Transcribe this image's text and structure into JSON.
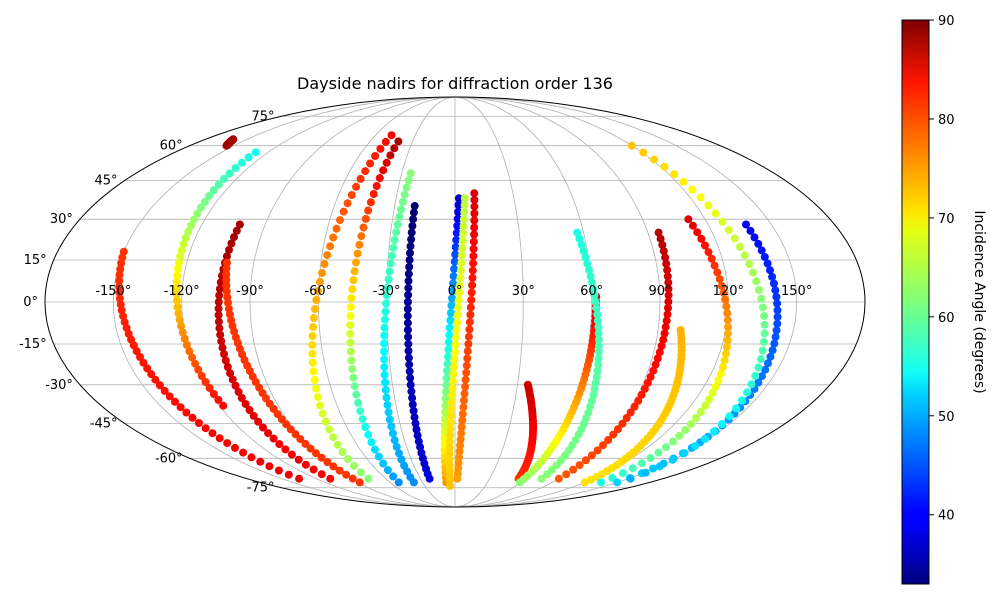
{
  "chart_data": {
    "type": "scatter",
    "projection": "mollweide",
    "title": "Dayside nadirs for diffraction order 136",
    "lon_ticks": [
      "-150°",
      "-120°",
      "-90°",
      "-60°",
      "-30°",
      "0°",
      "30°",
      "60°",
      "90°",
      "120°",
      "150°"
    ],
    "lat_ticks": [
      "75°",
      "60°",
      "45°",
      "30°",
      "15°",
      "0°",
      "-15°",
      "-30°",
      "-45°",
      "-60°",
      "-75°"
    ],
    "grid": true,
    "colorbar": {
      "label": "Incidence Angle (degrees)",
      "colormap": "jet",
      "range": [
        33,
        90
      ],
      "ticks": [
        "40",
        "50",
        "60",
        "70",
        "80",
        "90"
      ]
    },
    "tracks": [
      {
        "lon": [
          -135,
          -150
        ],
        "lat": [
          -70,
          18
        ],
        "value_start": 84,
        "value_end": 80
      },
      {
        "lon": [
          -155,
          -160
        ],
        "lat": [
          60,
          63
        ],
        "value_start": 88,
        "value_end": 88
      },
      {
        "lon": [
          -118,
          -128
        ],
        "lat": [
          -38,
          57
        ],
        "value_start": 83,
        "value_end": 55
      },
      {
        "lon": [
          -108,
          -102
        ],
        "lat": [
          -70,
          28
        ],
        "value_start": 83,
        "value_end": 88
      },
      {
        "lon": [
          -88,
          -102
        ],
        "lat": [
          -72,
          14
        ],
        "value_start": 80,
        "value_end": 80
      },
      {
        "lon": [
          -75,
          -48
        ],
        "lat": [
          -70,
          65
        ],
        "value_start": 62,
        "value_end": 83
      },
      {
        "lon": [
          -52,
          -40
        ],
        "lat": [
          -72,
          62
        ],
        "value_start": 48,
        "value_end": 88
      },
      {
        "lon": [
          -38,
          -25
        ],
        "lat": [
          -72,
          48
        ],
        "value_start": 48,
        "value_end": 62
      },
      {
        "lon": [
          -22,
          -20
        ],
        "lat": [
          -70,
          35
        ],
        "value_start": 38,
        "value_end": 32
      },
      {
        "lon": [
          -8,
          2
        ],
        "lat": [
          -72,
          38
        ],
        "value_start": 75,
        "value_end": 37
      },
      {
        "lon": [
          -5,
          5
        ],
        "lat": [
          -74,
          38
        ],
        "value_start": 72,
        "value_end": 65
      },
      {
        "lon": [
          2,
          10
        ],
        "lat": [
          -70,
          40
        ],
        "value_start": 74,
        "value_end": 85
      },
      {
        "lon": [
          55,
          35
        ],
        "lat": [
          -70,
          -30
        ],
        "value_start": 80,
        "value_end": 86
      },
      {
        "lon": [
          60,
          62
        ],
        "lat": [
          -72,
          2
        ],
        "value_start": 62,
        "value_end": 86
      },
      {
        "lon": [
          75,
          57
        ],
        "lat": [
          -70,
          25
        ],
        "value_start": 62,
        "value_end": 56
      },
      {
        "lon": [
          90,
          95
        ],
        "lat": [
          -70,
          25
        ],
        "value_start": 78,
        "value_end": 87
      },
      {
        "lon": [
          120,
          100
        ],
        "lat": [
          -72,
          -10
        ],
        "value_start": 70,
        "value_end": 73
      },
      {
        "lon": [
          135,
          112
        ],
        "lat": [
          -72,
          30
        ],
        "value_start": 56,
        "value_end": 85
      },
      {
        "lon": [
          150,
          138
        ],
        "lat": [
          -72,
          28
        ],
        "value_start": 52,
        "value_end": 40
      },
      {
        "lon": [
          152,
          120
        ],
        "lat": [
          -70,
          60
        ],
        "value_start": 50,
        "value_end": 72
      }
    ]
  }
}
